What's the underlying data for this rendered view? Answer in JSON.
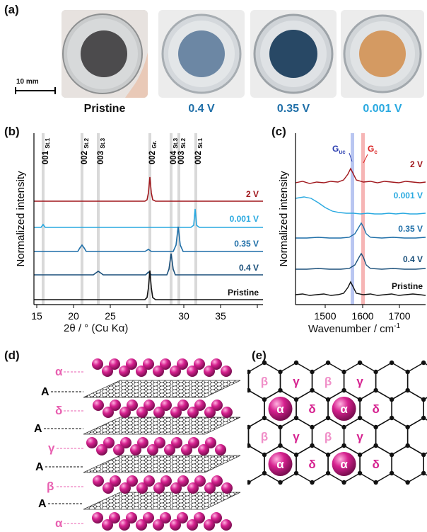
{
  "panel_a": {
    "label": "(a)",
    "scale_bar": "10 mm",
    "photos": [
      {
        "caption": "Pristine",
        "color": "#111111"
      },
      {
        "caption": "0.4 V",
        "color": "#1f6fa8"
      },
      {
        "caption": "0.35 V",
        "color": "#1f6fa8"
      },
      {
        "caption": "0.001 V",
        "color": "#29a9e0"
      }
    ]
  },
  "panel_b": {
    "label": "(b)",
    "markers": [
      {
        "main": "001",
        "sub": "St.1"
      },
      {
        "main": "002",
        "sub": "St.2"
      },
      {
        "main": "003",
        "sub": "St.3"
      },
      {
        "main": "002",
        "sub": "Gr."
      },
      {
        "main": "004",
        "sub": "St.3"
      },
      {
        "main": "003",
        "sub": "St.2"
      },
      {
        "main": "002",
        "sub": "St.1"
      }
    ],
    "traces": [
      {
        "label": "2 V",
        "color": "#a0171c"
      },
      {
        "label": "0.001 V",
        "color": "#29a9e0"
      },
      {
        "label": "0.35 V",
        "color": "#1f6fa8"
      },
      {
        "label": "0.4 V",
        "color": "#1a4f7a"
      },
      {
        "label": "Pristine",
        "color": "#111111"
      }
    ],
    "ylabel": "Normalized intensity",
    "xlabel": "2θ / ° (Cu Kα)",
    "xticks": [
      "15",
      "20",
      "25",
      "30",
      "35"
    ]
  },
  "panel_c": {
    "label": "(c)",
    "guc": "G",
    "guc_sub": "uc",
    "gc": "G",
    "gc_sub": "c",
    "traces": [
      {
        "label": "2 V",
        "color": "#a0171c"
      },
      {
        "label": "0.001 V",
        "color": "#29a9e0"
      },
      {
        "label": "0.35 V",
        "color": "#1f6fa8"
      },
      {
        "label": "0.4 V",
        "color": "#1a4f7a"
      },
      {
        "label": "Pristine",
        "color": "#111111"
      }
    ],
    "ylabel": "Normalized intensity",
    "xlabel": "Wavenumber / cm",
    "xlabel_sup": "-1",
    "xticks": [
      "1500",
      "1600",
      "1700"
    ]
  },
  "panel_d": {
    "label": "(d)",
    "layers": [
      {
        "label": "α",
        "kind": "ion"
      },
      {
        "label": "A",
        "kind": "graphene"
      },
      {
        "label": "δ",
        "kind": "ion"
      },
      {
        "label": "A",
        "kind": "graphene"
      },
      {
        "label": "γ",
        "kind": "ion"
      },
      {
        "label": "A",
        "kind": "graphene"
      },
      {
        "label": "β",
        "kind": "ion"
      },
      {
        "label": "A",
        "kind": "graphene"
      },
      {
        "label": "α",
        "kind": "ion"
      }
    ]
  },
  "panel_e": {
    "label": "(e)",
    "row1": [
      "β",
      "γ",
      "β",
      "γ"
    ],
    "row2": [
      "α",
      "δ",
      "α",
      "δ"
    ],
    "row3": [
      "β",
      "γ",
      "β",
      "γ"
    ],
    "row4": [
      "α",
      "δ",
      "α",
      "δ"
    ]
  },
  "colors": {
    "magenta": "#d6218f",
    "pink_label": "#e85fb0"
  }
}
